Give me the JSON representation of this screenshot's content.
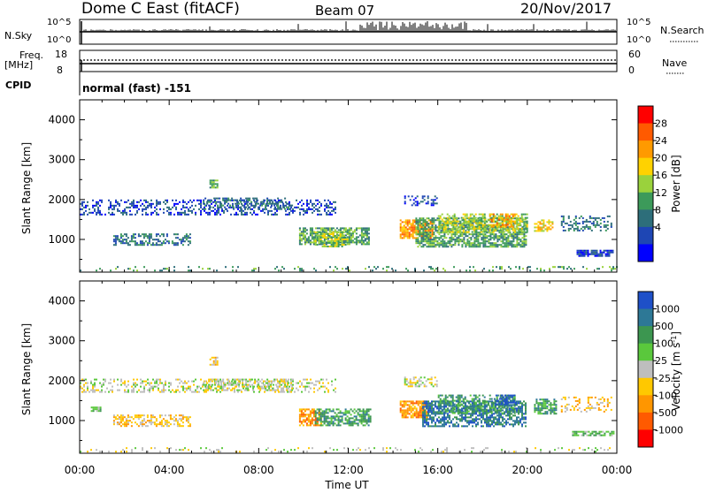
{
  "header": {
    "site": "Dome C East (fitACF)",
    "beam": "Beam 07",
    "date": "20/Nov/2017"
  },
  "top_panels": {
    "nsky_label": "N.Sky",
    "nsky_ticks": [
      "10^5",
      "10^0"
    ],
    "nsearch_label": "N.Search",
    "nsearch_ticks": [
      "10^5",
      "10^0"
    ],
    "freq_label_1": "Freq.",
    "freq_label_2": "[MHz]",
    "freq_ticks": [
      "18",
      "8"
    ],
    "nave_label": "Nave",
    "nave_ticks": [
      "60",
      "0"
    ],
    "cpid_label": "CPID",
    "cpid_value": "normal (fast) -151"
  },
  "chart_data": [
    {
      "type": "heatmap",
      "name": "power",
      "ylabel": "Slant Range [km]",
      "ylim": [
        180,
        4500
      ],
      "yticks": [
        "4000",
        "3000",
        "2000",
        "1000"
      ],
      "xlim": [
        0,
        24
      ],
      "colorbar": {
        "label": "Power [dB]",
        "ticks": [
          "28",
          "24",
          "20",
          "16",
          "12",
          "8",
          "4"
        ],
        "colors": [
          "#ff0000",
          "#ff5a00",
          "#ff9a00",
          "#ffd200",
          "#9ad23c",
          "#3c9a5a",
          "#2d6e7a",
          "#1e46b4",
          "#0000ff"
        ]
      },
      "regions": [
        {
          "t0": 0.0,
          "t1": 11.5,
          "r0": 1600,
          "r1": 2000,
          "c": 7,
          "d": 0.35
        },
        {
          "t0": 5.5,
          "t1": 9.5,
          "r0": 1750,
          "r1": 2050,
          "c": 6,
          "d": 0.45
        },
        {
          "t0": 1.5,
          "t1": 5.0,
          "r0": 850,
          "r1": 1150,
          "c": 6,
          "d": 0.5
        },
        {
          "t0": 5.8,
          "t1": 6.2,
          "r0": 2300,
          "r1": 2500,
          "c": 5,
          "d": 0.8
        },
        {
          "t0": 9.8,
          "t1": 13.0,
          "r0": 850,
          "r1": 1300,
          "c": 5,
          "d": 0.7
        },
        {
          "t0": 10.5,
          "t1": 12.0,
          "r0": 800,
          "r1": 1200,
          "c": 4,
          "d": 0.6
        },
        {
          "t0": 14.3,
          "t1": 15.8,
          "r0": 1000,
          "r1": 1500,
          "c": 2,
          "d": 0.75
        },
        {
          "t0": 15.0,
          "t1": 20.0,
          "r0": 800,
          "r1": 1550,
          "c": 5,
          "d": 0.7
        },
        {
          "t0": 16.0,
          "t1": 20.0,
          "r0": 1150,
          "r1": 1650,
          "c": 4,
          "d": 0.55
        },
        {
          "t0": 18.3,
          "t1": 19.5,
          "r0": 1300,
          "r1": 1650,
          "c": 2,
          "d": 0.5
        },
        {
          "t0": 20.3,
          "t1": 21.2,
          "r0": 1200,
          "r1": 1500,
          "c": 3,
          "d": 0.6
        },
        {
          "t0": 21.5,
          "t1": 23.8,
          "r0": 1200,
          "r1": 1600,
          "c": 6,
          "d": 0.35
        },
        {
          "t0": 22.2,
          "t1": 23.9,
          "r0": 560,
          "r1": 740,
          "c": 7,
          "d": 0.7
        },
        {
          "t0": 14.5,
          "t1": 16.0,
          "r0": 1850,
          "r1": 2100,
          "c": 7,
          "d": 0.4
        },
        {
          "t0": 0.0,
          "t1": 24.0,
          "r0": 200,
          "r1": 330,
          "c": 5,
          "d": 0.15
        }
      ]
    },
    {
      "type": "heatmap",
      "name": "velocity",
      "ylabel": "Slant Range [km]",
      "ylim": [
        180,
        4500
      ],
      "yticks": [
        "4000",
        "3000",
        "2000",
        "1000"
      ],
      "xlim": [
        0,
        24
      ],
      "xticks": [
        "00:00",
        "04:00",
        "08:00",
        "12:00",
        "16:00",
        "20:00",
        "00:00"
      ],
      "xlabel": "Time UT",
      "colorbar": {
        "label": "Velocity [m s-1]",
        "label_main": "Velocity [m s",
        "label_sup": "-1",
        "label_end": "]",
        "ticks": [
          "1000",
          "500",
          "100",
          "25",
          "-25",
          "-100",
          "-500",
          "-1000"
        ],
        "colors": [
          "#1e50c8",
          "#2d7896",
          "#3c9650",
          "#5ac83c",
          "#bebebe",
          "#ffc800",
          "#ff9600",
          "#ff5a00",
          "#ff0000"
        ]
      },
      "regions": [
        {
          "t0": 0.0,
          "t1": 11.5,
          "r0": 1700,
          "r1": 2050,
          "c": 4,
          "d": 0.35
        },
        {
          "t0": 5.5,
          "t1": 9.5,
          "r0": 1750,
          "r1": 2050,
          "c": 4,
          "d": 0.45
        },
        {
          "t0": 1.5,
          "t1": 5.0,
          "r0": 850,
          "r1": 1150,
          "c": 5,
          "d": 0.5
        },
        {
          "t0": 5.8,
          "t1": 6.2,
          "r0": 2400,
          "r1": 2600,
          "c": 5,
          "d": 0.7
        },
        {
          "t0": 0.5,
          "t1": 1.0,
          "r0": 1200,
          "r1": 1350,
          "c": 3,
          "d": 0.6
        },
        {
          "t0": 9.8,
          "t1": 10.8,
          "r0": 850,
          "r1": 1300,
          "c": 6,
          "d": 0.7
        },
        {
          "t0": 10.5,
          "t1": 13.0,
          "r0": 850,
          "r1": 1300,
          "c": 2,
          "d": 0.65
        },
        {
          "t0": 14.3,
          "t1": 15.6,
          "r0": 1050,
          "r1": 1500,
          "c": 6,
          "d": 0.75
        },
        {
          "t0": 15.3,
          "t1": 20.0,
          "r0": 850,
          "r1": 1500,
          "c": 1,
          "d": 0.65
        },
        {
          "t0": 16.0,
          "t1": 19.5,
          "r0": 1150,
          "r1": 1650,
          "c": 2,
          "d": 0.5
        },
        {
          "t0": 18.5,
          "t1": 19.5,
          "r0": 1400,
          "r1": 1650,
          "c": 0,
          "d": 0.5
        },
        {
          "t0": 20.3,
          "t1": 21.3,
          "r0": 1150,
          "r1": 1550,
          "c": 2,
          "d": 0.6
        },
        {
          "t0": 21.5,
          "t1": 23.8,
          "r0": 1200,
          "r1": 1600,
          "c": 5,
          "d": 0.3
        },
        {
          "t0": 22.0,
          "t1": 23.9,
          "r0": 600,
          "r1": 740,
          "c": 3,
          "d": 0.7
        },
        {
          "t0": 14.5,
          "t1": 16.0,
          "r0": 1850,
          "r1": 2100,
          "c": 4,
          "d": 0.45
        },
        {
          "t0": 0.0,
          "t1": 24.0,
          "r0": 200,
          "r1": 330,
          "c": 4,
          "d": 0.15
        }
      ]
    }
  ]
}
